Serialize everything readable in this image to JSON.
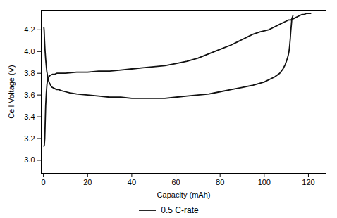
{
  "chart_data": {
    "type": "line",
    "xlabel": "Capacity (mAh)",
    "ylabel": "Cell Voltage (V)",
    "xlim": [
      -1,
      128
    ],
    "ylim": [
      2.88,
      4.38
    ],
    "xticks": [
      0,
      20,
      40,
      60,
      80,
      100,
      120
    ],
    "yticks": [
      {
        "value": 3.0,
        "label": "3.0"
      },
      3.2,
      3.4,
      3.6,
      3.8,
      {
        "value": 4.0,
        "label": "4.0"
      },
      4.2
    ],
    "grid": false,
    "legend": "bottom",
    "series": [
      {
        "name": "0.5 C-rate",
        "color": "#111111",
        "x": [
          0.2,
          0.3,
          0.4,
          0.5,
          0.7,
          1.0,
          1.5,
          2.0,
          2.5,
          3.0,
          3.5,
          4.0,
          5.0,
          6.0,
          7.0,
          8.0,
          10.0,
          12.0,
          15.0,
          20.0,
          25.0,
          30.0,
          35.0,
          40.0,
          45.0,
          50.0,
          55.0,
          60.0,
          65.0,
          70.0,
          75.0,
          80.0,
          85.0,
          90.0,
          95.0,
          100.0,
          103.0,
          105.0,
          107.0,
          108.5,
          109.5,
          110.2,
          110.8,
          111.2,
          111.5,
          111.8,
          112.0,
          112.3,
          112.5,
          113.0
        ],
        "values": [
          4.22,
          4.2,
          4.15,
          4.1,
          4.02,
          3.93,
          3.82,
          3.76,
          3.72,
          3.7,
          3.68,
          3.67,
          3.66,
          3.65,
          3.65,
          3.64,
          3.63,
          3.62,
          3.61,
          3.6,
          3.59,
          3.58,
          3.58,
          3.57,
          3.57,
          3.57,
          3.57,
          3.58,
          3.59,
          3.6,
          3.61,
          3.63,
          3.65,
          3.67,
          3.69,
          3.72,
          3.75,
          3.77,
          3.8,
          3.84,
          3.88,
          3.92,
          3.96,
          4.0,
          4.05,
          4.12,
          4.18,
          4.25,
          4.3,
          4.33
        ]
      },
      {
        "color": "#111111",
        "x": [
          0.2,
          0.4,
          0.6,
          0.8,
          1.0,
          1.3,
          1.6,
          2.0,
          2.5,
          3.0,
          4.0,
          5.0,
          6.0,
          7.0,
          8.0,
          10.0,
          15.0,
          20.0,
          25.0,
          30.0,
          35.0,
          40.0,
          45.0,
          50.0,
          55.0,
          60.0,
          65.0,
          70.0,
          75.0,
          80.0,
          85.0,
          88.0,
          90.0,
          93.0,
          95.0,
          98.0,
          100.0,
          102.0,
          104.0,
          106.0,
          108.0,
          109.0,
          110.0,
          111.0,
          112.0,
          113.0,
          114.0,
          115.0,
          116.0,
          117.0,
          118.0,
          119.0,
          120.0,
          120.5,
          121.0
        ],
        "values": [
          3.13,
          3.14,
          3.2,
          3.35,
          3.5,
          3.62,
          3.7,
          3.75,
          3.77,
          3.78,
          3.79,
          3.79,
          3.8,
          3.8,
          3.8,
          3.8,
          3.81,
          3.81,
          3.82,
          3.82,
          3.83,
          3.84,
          3.85,
          3.86,
          3.87,
          3.89,
          3.91,
          3.94,
          3.98,
          4.02,
          4.06,
          4.09,
          4.11,
          4.14,
          4.16,
          4.18,
          4.19,
          4.2,
          4.22,
          4.24,
          4.26,
          4.27,
          4.28,
          4.29,
          4.29,
          4.3,
          4.31,
          4.32,
          4.33,
          4.34,
          4.34,
          4.35,
          4.35,
          4.35,
          4.35
        ]
      }
    ]
  }
}
